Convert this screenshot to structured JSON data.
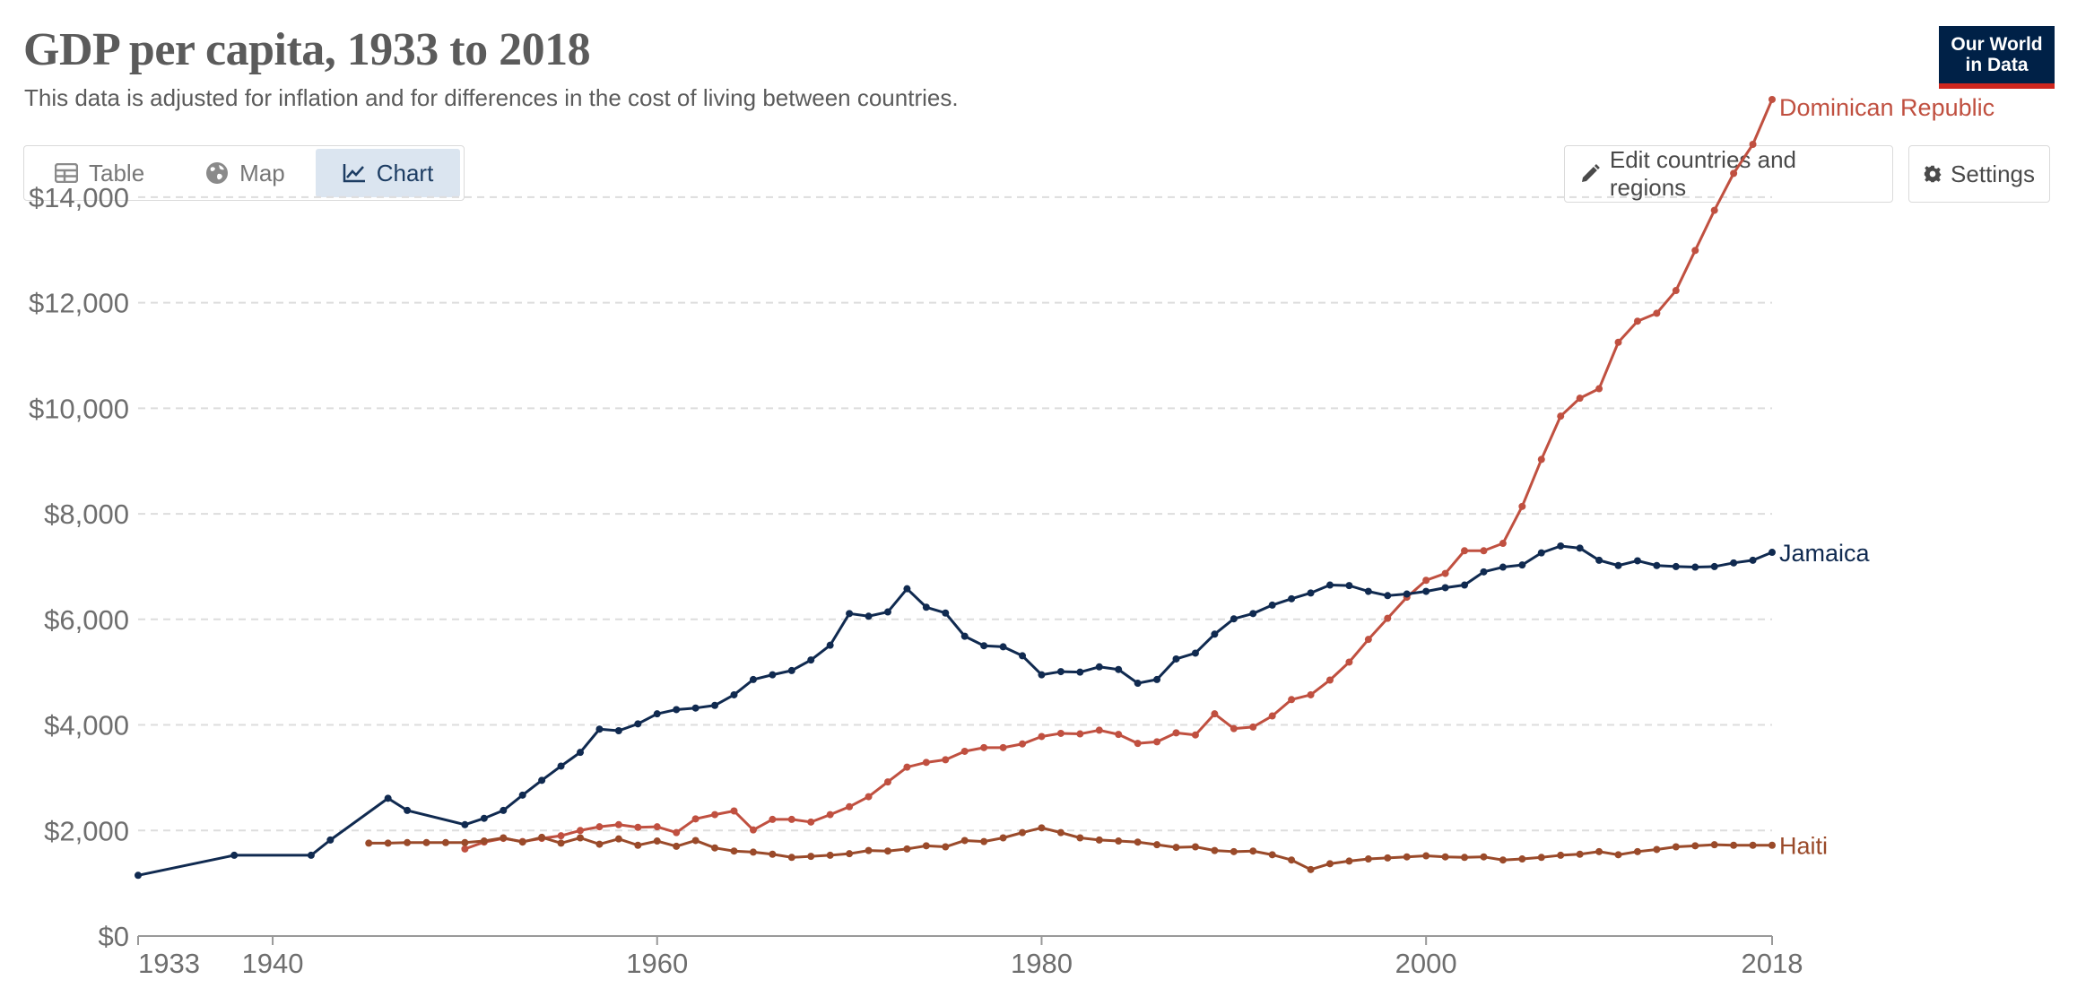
{
  "header": {
    "title": "GDP per capita, 1933 to 2018",
    "subtitle": "This data is adjusted for inflation and for differences in the cost of living between countries.",
    "logo_line1": "Our World",
    "logo_line2": "in Data"
  },
  "tabs": [
    {
      "label": "Table",
      "icon": "table-icon",
      "active": false
    },
    {
      "label": "Map",
      "icon": "globe-icon",
      "active": false
    },
    {
      "label": "Chart",
      "icon": "line-chart-icon",
      "active": true
    }
  ],
  "toolbar": {
    "edit_label": "Edit countries and regions",
    "edit_icon": "pencil-icon",
    "settings_label": "Settings",
    "settings_icon": "gear-icon"
  },
  "colors": {
    "Dominican Republic": "#c05040",
    "Jamaica": "#102a50",
    "Haiti": "#9a4a2a",
    "grid": "#dddddd",
    "active_tab": "#dbe5f0"
  },
  "chart_data": {
    "type": "line",
    "title": "GDP per capita, 1933 to 2018",
    "xlim": [
      1933,
      2018
    ],
    "ylim": [
      0,
      15000
    ],
    "y_ticks": [
      0,
      2000,
      4000,
      6000,
      8000,
      10000,
      12000,
      14000
    ],
    "y_tick_labels": [
      "$0",
      "$2,000",
      "$4,000",
      "$6,000",
      "$8,000",
      "$10,000",
      "$12,000",
      "$14,000"
    ],
    "x_tick_labels": [
      "1933",
      "1940",
      "1960",
      "1980",
      "2000",
      "2018"
    ],
    "grid": "horizontal dashed",
    "legend": "inline labels at line ends",
    "series": [
      {
        "name": "Dominican Republic",
        "x": [
          1950,
          1951,
          1952,
          1953,
          1954,
          1955,
          1956,
          1957,
          1958,
          1959,
          1960,
          1961,
          1962,
          1963,
          1964,
          1965,
          1966,
          1967,
          1968,
          1969,
          1970,
          1971,
          1972,
          1973,
          1974,
          1975,
          1976,
          1977,
          1978,
          1979,
          1980,
          1981,
          1982,
          1983,
          1984,
          1985,
          1986,
          1987,
          1988,
          1989,
          1990,
          1991,
          1992,
          1993,
          1994,
          1995,
          1996,
          1997,
          1998,
          1999,
          2000,
          2001,
          2002,
          2003,
          2004,
          2005,
          2006,
          2007,
          2008,
          2009,
          2010,
          2011,
          2012,
          2013,
          2014,
          2015,
          2016,
          2017,
          2018
        ],
        "y": [
          1650,
          1780,
          1850,
          1790,
          1850,
          1900,
          2000,
          2070,
          2110,
          2060,
          2070,
          1960,
          2220,
          2300,
          2370,
          2010,
          2210,
          2210,
          2160,
          2300,
          2450,
          2640,
          2920,
          3200,
          3290,
          3340,
          3500,
          3570,
          3570,
          3640,
          3780,
          3840,
          3830,
          3900,
          3820,
          3650,
          3680,
          3850,
          3810,
          4210,
          3930,
          3960,
          4170,
          4480,
          4570,
          4850,
          5190,
          5620,
          6020,
          6420,
          6740,
          6870,
          7300,
          7300,
          7440,
          8140,
          9030,
          9850,
          10190,
          10370,
          11250,
          11650,
          11800,
          12230,
          12990,
          13750,
          14450,
          15000,
          15850
        ]
      },
      {
        "name": "Jamaica",
        "x": [
          1933,
          1938,
          1942,
          1943,
          1946,
          1947,
          1950,
          1951,
          1952,
          1953,
          1954,
          1955,
          1956,
          1957,
          1958,
          1959,
          1960,
          1961,
          1962,
          1963,
          1964,
          1965,
          1966,
          1967,
          1968,
          1969,
          1970,
          1971,
          1972,
          1973,
          1974,
          1975,
          1976,
          1977,
          1978,
          1979,
          1980,
          1981,
          1982,
          1983,
          1984,
          1985,
          1986,
          1987,
          1988,
          1989,
          1990,
          1991,
          1992,
          1993,
          1994,
          1995,
          1996,
          1997,
          1998,
          1999,
          2000,
          2001,
          2002,
          2003,
          2004,
          2005,
          2006,
          2007,
          2008,
          2009,
          2010,
          2011,
          2012,
          2013,
          2014,
          2015,
          2016,
          2017,
          2018
        ],
        "y": [
          1150,
          1530,
          1530,
          1820,
          2610,
          2380,
          2110,
          2230,
          2380,
          2670,
          2950,
          3220,
          3480,
          3920,
          3890,
          4020,
          4210,
          4290,
          4320,
          4370,
          4570,
          4860,
          4950,
          5030,
          5230,
          5510,
          6110,
          6060,
          6140,
          6580,
          6230,
          6120,
          5680,
          5500,
          5480,
          5310,
          4950,
          5010,
          5000,
          5100,
          5050,
          4790,
          4860,
          5250,
          5360,
          5720,
          6010,
          6110,
          6270,
          6390,
          6500,
          6650,
          6640,
          6530,
          6450,
          6480,
          6530,
          6600,
          6650,
          6900,
          6990,
          7030,
          7260,
          7390,
          7350,
          7120,
          7020,
          7110,
          7020,
          7000,
          6990,
          7000,
          7070,
          7120,
          7270
        ]
      },
      {
        "name": "Haiti",
        "x": [
          1945,
          1946,
          1947,
          1948,
          1949,
          1950,
          1951,
          1952,
          1953,
          1954,
          1955,
          1956,
          1957,
          1958,
          1959,
          1960,
          1961,
          1962,
          1963,
          1964,
          1965,
          1966,
          1967,
          1968,
          1969,
          1970,
          1971,
          1972,
          1973,
          1974,
          1975,
          1976,
          1977,
          1978,
          1979,
          1980,
          1981,
          1982,
          1983,
          1984,
          1985,
          1986,
          1987,
          1988,
          1989,
          1990,
          1991,
          1992,
          1993,
          1994,
          1995,
          1996,
          1997,
          1998,
          1999,
          2000,
          2001,
          2002,
          2003,
          2004,
          2005,
          2006,
          2007,
          2008,
          2009,
          2010,
          2011,
          2012,
          2013,
          2014,
          2015,
          2016,
          2017,
          2018
        ],
        "y": [
          1760,
          1760,
          1770,
          1770,
          1770,
          1770,
          1800,
          1860,
          1780,
          1870,
          1760,
          1860,
          1740,
          1840,
          1720,
          1800,
          1700,
          1810,
          1670,
          1610,
          1590,
          1550,
          1490,
          1510,
          1530,
          1560,
          1620,
          1610,
          1650,
          1710,
          1690,
          1810,
          1790,
          1860,
          1960,
          2050,
          1960,
          1860,
          1820,
          1800,
          1780,
          1730,
          1680,
          1690,
          1620,
          1600,
          1610,
          1540,
          1440,
          1260,
          1370,
          1420,
          1460,
          1480,
          1500,
          1520,
          1500,
          1490,
          1500,
          1440,
          1460,
          1490,
          1530,
          1550,
          1600,
          1540,
          1600,
          1640,
          1690,
          1710,
          1730,
          1720,
          1720,
          1720
        ]
      }
    ]
  }
}
